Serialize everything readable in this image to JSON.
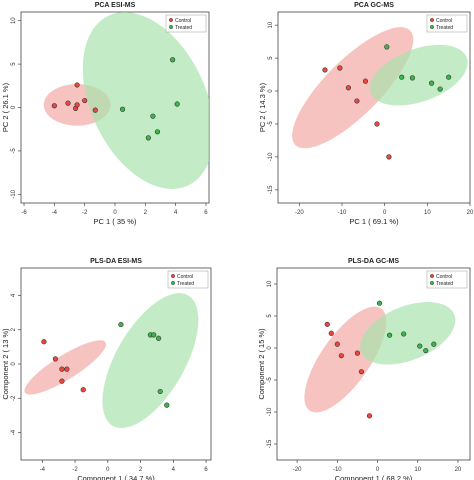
{
  "chart_data": [
    {
      "type": "scatter",
      "title": "PCA ESI-MS",
      "xlabel": "PC 1 ( 35 %)",
      "ylabel": "PC 2 ( 26.1 %)",
      "xlim": [
        -6.2,
        6.2
      ],
      "ylim": [
        -11,
        11
      ],
      "xticks": [
        -6,
        -4,
        -2,
        0,
        2,
        4,
        6
      ],
      "yticks": [
        -10,
        -5,
        0,
        5,
        10
      ],
      "legend": "top-right",
      "series": [
        {
          "name": "Control",
          "color": "#e8473f",
          "fill": "#f4a9a6",
          "points": [
            [
              -4.0,
              0.2
            ],
            [
              -3.1,
              0.5
            ],
            [
              -2.5,
              2.6
            ],
            [
              -2.6,
              -0.1
            ],
            [
              -2.5,
              0.3
            ],
            [
              -2.0,
              0.8
            ],
            [
              -1.3,
              -0.3
            ]
          ],
          "ellipse": {
            "cx": -2.5,
            "cy": 0.3,
            "rx": 2.2,
            "ry": 2.4,
            "angle": 0
          }
        },
        {
          "name": "Treated",
          "color": "#3cb44b",
          "fill": "#a9e3ad",
          "points": [
            [
              0.5,
              -0.2
            ],
            [
              2.5,
              -1.0
            ],
            [
              2.2,
              -3.5
            ],
            [
              2.8,
              -2.8
            ],
            [
              3.8,
              5.5
            ],
            [
              4.1,
              0.4
            ]
          ],
          "ellipse": {
            "cx": 2.2,
            "cy": 0.8,
            "rx": 3.8,
            "ry": 10.8,
            "angle": -25
          }
        }
      ]
    },
    {
      "type": "scatter",
      "title": "PCA GC-MS",
      "xlabel": "PC 1 ( 69.1 %)",
      "ylabel": "PC 2 ( 14.3 %)",
      "xlim": [
        -25,
        20
      ],
      "ylim": [
        -17,
        12
      ],
      "xticks": [
        -20,
        -10,
        0,
        10,
        20
      ],
      "yticks": [
        -15,
        -10,
        -5,
        0,
        5,
        10
      ],
      "legend": "top-right",
      "series": [
        {
          "name": "Control",
          "color": "#e8473f",
          "fill": "#f4a9a6",
          "points": [
            [
              -14,
              3.2
            ],
            [
              -10.5,
              3.5
            ],
            [
              -8.5,
              0.5
            ],
            [
              -4.5,
              1.5
            ],
            [
              -6.5,
              -1.5
            ],
            [
              -1.8,
              -5.0
            ],
            [
              1.0,
              -10.0
            ]
          ],
          "ellipse": {
            "cx": -7.5,
            "cy": 0.5,
            "rx": 19.0,
            "ry": 4.2,
            "angle": -45
          }
        },
        {
          "name": "Treated",
          "color": "#3cb44b",
          "fill": "#a9e3ad",
          "points": [
            [
              0.5,
              6.7
            ],
            [
              4.0,
              2.1
            ],
            [
              6.5,
              2.0
            ],
            [
              11.0,
              1.2
            ],
            [
              13.0,
              0.3
            ],
            [
              15.0,
              2.1
            ]
          ],
          "ellipse": {
            "cx": 8.0,
            "cy": 2.4,
            "rx": 12.0,
            "ry": 4.0,
            "angle": -20
          }
        }
      ]
    },
    {
      "type": "scatter",
      "title": "PLS-DA ESI-MS",
      "xlabel": "Component 1 ( 34.7 %)",
      "ylabel": "Component 2 ( 13 %)",
      "xlim": [
        -5.3,
        6.3
      ],
      "ylim": [
        -5.6,
        5.6
      ],
      "xticks": [
        -4,
        -2,
        0,
        2,
        4,
        6
      ],
      "yticks": [
        -4,
        -2,
        0,
        2,
        4
      ],
      "legend": "top-right",
      "series": [
        {
          "name": "Control",
          "color": "#e8473f",
          "fill": "#f4a9a6",
          "points": [
            [
              -3.9,
              1.3
            ],
            [
              -3.2,
              0.3
            ],
            [
              -2.8,
              -0.3
            ],
            [
              -2.5,
              -0.3
            ],
            [
              -2.8,
              -1.0
            ],
            [
              -1.5,
              -1.5
            ]
          ],
          "ellipse": {
            "cx": -2.6,
            "cy": -0.2,
            "rx": 2.9,
            "ry": 0.7,
            "angle": -32
          }
        },
        {
          "name": "Treated",
          "color": "#3cb44b",
          "fill": "#a9e3ad",
          "points": [
            [
              0.8,
              2.3
            ],
            [
              2.6,
              1.7
            ],
            [
              2.8,
              1.7
            ],
            [
              3.1,
              1.5
            ],
            [
              3.2,
              -1.6
            ],
            [
              3.6,
              -2.4
            ]
          ],
          "ellipse": {
            "cx": 2.6,
            "cy": 0.2,
            "rx": 4.6,
            "ry": 2.0,
            "angle": -60
          }
        }
      ]
    },
    {
      "type": "scatter",
      "title": "PLS-DA GC-MS",
      "xlabel": "Component 1 ( 68.2 %)",
      "ylabel": "Component 2 ( 15 %)",
      "xlim": [
        -25,
        23
      ],
      "ylim": [
        -17.5,
        12.5
      ],
      "xticks": [
        -20,
        -10,
        0,
        10,
        20
      ],
      "yticks": [
        -15,
        -10,
        -5,
        0,
        5,
        10
      ],
      "legend": "top-right",
      "series": [
        {
          "name": "Control",
          "color": "#e8473f",
          "fill": "#f4a9a6",
          "points": [
            [
              -12.5,
              3.7
            ],
            [
              -11.5,
              2.3
            ],
            [
              -10.0,
              0.6
            ],
            [
              -9.0,
              -1.2
            ],
            [
              -5.0,
              -0.8
            ],
            [
              -4.0,
              -3.7
            ],
            [
              -2.0,
              -10.6
            ]
          ],
          "ellipse": {
            "cx": -8.0,
            "cy": -1.8,
            "rx": 15.5,
            "ry": 3.8,
            "angle": -55
          }
        },
        {
          "name": "Treated",
          "color": "#3cb44b",
          "fill": "#a9e3ad",
          "points": [
            [
              0.5,
              7.0
            ],
            [
              3.0,
              2.0
            ],
            [
              6.5,
              2.2
            ],
            [
              10.5,
              0.3
            ],
            [
              12.0,
              -0.4
            ],
            [
              14.0,
              0.6
            ]
          ],
          "ellipse": {
            "cx": 7.5,
            "cy": 2.3,
            "rx": 12.5,
            "ry": 4.2,
            "angle": -22
          }
        }
      ]
    }
  ]
}
